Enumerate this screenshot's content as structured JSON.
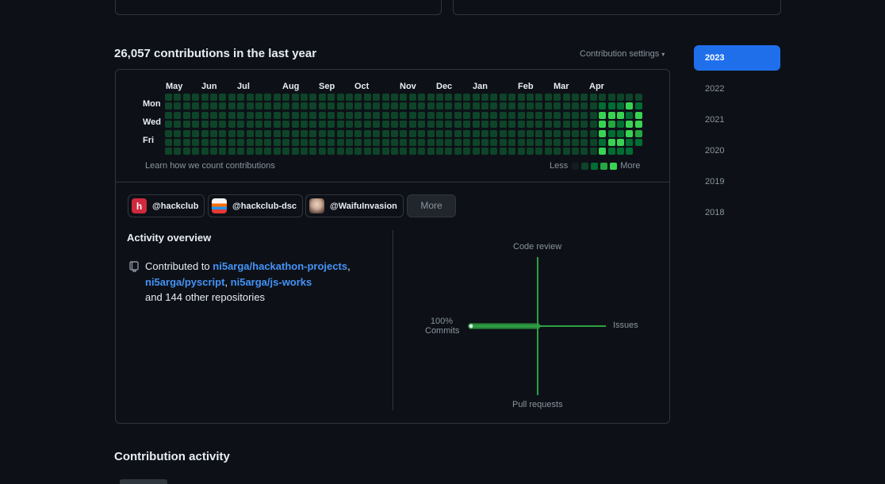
{
  "contributions": {
    "title": "26,057 contributions in the last year",
    "settings_label": "Contribution settings",
    "months": [
      "May",
      "Jun",
      "Jul",
      "Aug",
      "Sep",
      "Oct",
      "Nov",
      "Dec",
      "Jan",
      "Feb",
      "Mar",
      "Apr"
    ],
    "days": [
      "Mon",
      "Wed",
      "Fri"
    ],
    "learn_link": "Learn how we count contributions",
    "legend_less": "Less",
    "legend_more": "More",
    "colors": {
      "base": "#0e4429",
      "empty": "#161b22",
      "levels": [
        "#161b22",
        "#0e4429",
        "#006d32",
        "#26a641",
        "#39d353"
      ]
    }
  },
  "years": [
    "2023",
    "2022",
    "2021",
    "2020",
    "2019",
    "2018"
  ],
  "selected_year": "2023",
  "orgs": [
    {
      "name": "@hackclub",
      "icon": "hackclub-avatar"
    },
    {
      "name": "@hackclub-dsc",
      "icon": "hackclub-dsc-avatar"
    },
    {
      "name": "@WaifuInvasion",
      "icon": "waifuinvasion-avatar"
    }
  ],
  "more_label": "More",
  "activity": {
    "title": "Activity overview",
    "prefix": "Contributed to",
    "repos": [
      "ni5arga/hackathon-projects",
      "ni5arga/pyscript",
      "ni5arga/js-works"
    ],
    "suffix": "and 144 other repositories",
    "repo_icon": "repo-icon"
  },
  "radar": {
    "code_review": "Code review",
    "issues": "Issues",
    "pull_requests": "Pull requests",
    "commits_pct": "100%",
    "commits": "Commits",
    "commits_value": 100,
    "issues_value": 0,
    "code_review_value": 0,
    "pull_requests_value": 0,
    "accent": "#26a641"
  },
  "section_title": "Contribution activity"
}
